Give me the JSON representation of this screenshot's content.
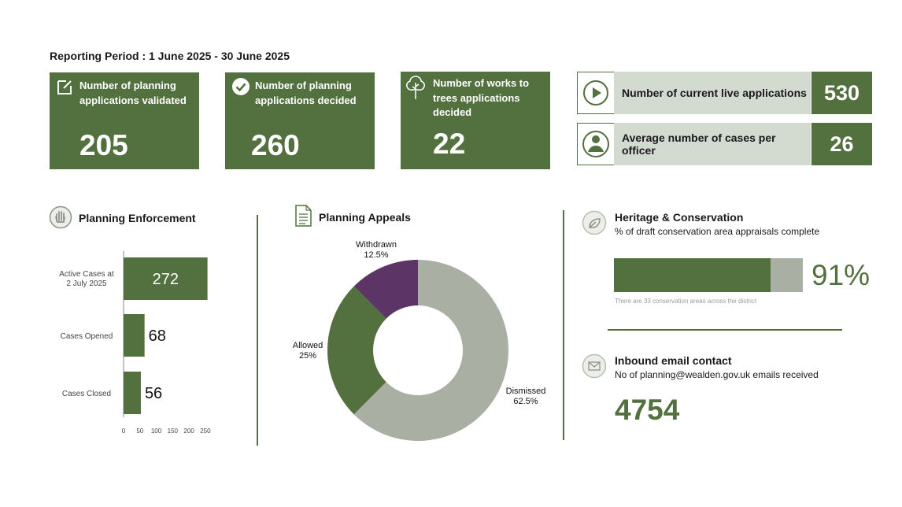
{
  "reporting_period": "Reporting Period : 1 June 2025 - 30 June 2025",
  "cards": [
    {
      "label": "Number of planning applications validated",
      "value": "205",
      "icon": "edit-icon"
    },
    {
      "label": "Number of planning applications decided",
      "value": "260",
      "icon": "check-circle-icon"
    },
    {
      "label": "Number of works to trees applications decided",
      "value": "22",
      "icon": "tree-icon"
    }
  ],
  "kpis": [
    {
      "label": "Number of current live applications",
      "value": "530",
      "icon": "play-icon"
    },
    {
      "label": "Average number of cases per officer",
      "value": "26",
      "icon": "user-icon"
    }
  ],
  "enforcement": {
    "title": "Planning Enforcement",
    "icon": "hand-icon"
  },
  "appeals": {
    "title": "Planning Appeals",
    "icon": "document-icon"
  },
  "heritage": {
    "title": "Heritage & Conservation",
    "subtitle": "% of draft conservation area appraisals complete",
    "value": "91%",
    "percent": 91,
    "note": "There are 33 conservation areas across the district",
    "icon": "leaf-icon"
  },
  "email": {
    "title": "Inbound email contact",
    "subtitle": "No of planning@wealden.gov.uk emails received",
    "value": "4754",
    "icon": "mail-icon"
  },
  "colors": {
    "green": "#53703f",
    "light_green": "#d3dbd1",
    "grey": "#a9afa3",
    "purple": "#5c3566"
  },
  "chart_data": [
    {
      "type": "bar",
      "orientation": "horizontal",
      "categories": [
        "Active Cases at 2 July 2025",
        "Cases Opened",
        "Cases Closed"
      ],
      "values": [
        272,
        68,
        56
      ],
      "value_labels": [
        "272",
        "68",
        "56"
      ],
      "xlim": [
        0,
        250
      ],
      "xticks": [
        "0",
        "50",
        "100",
        "150",
        "200",
        "250"
      ],
      "grid": false
    },
    {
      "type": "pie",
      "donut": true,
      "categories": [
        "Dismissed",
        "Allowed",
        "Withdrawn"
      ],
      "values": [
        62.5,
        25,
        12.5
      ],
      "value_labels": [
        "62.5%",
        "25%",
        "12.5%"
      ],
      "colors": [
        "#a9afa3",
        "#53703f",
        "#5c3566"
      ]
    }
  ]
}
